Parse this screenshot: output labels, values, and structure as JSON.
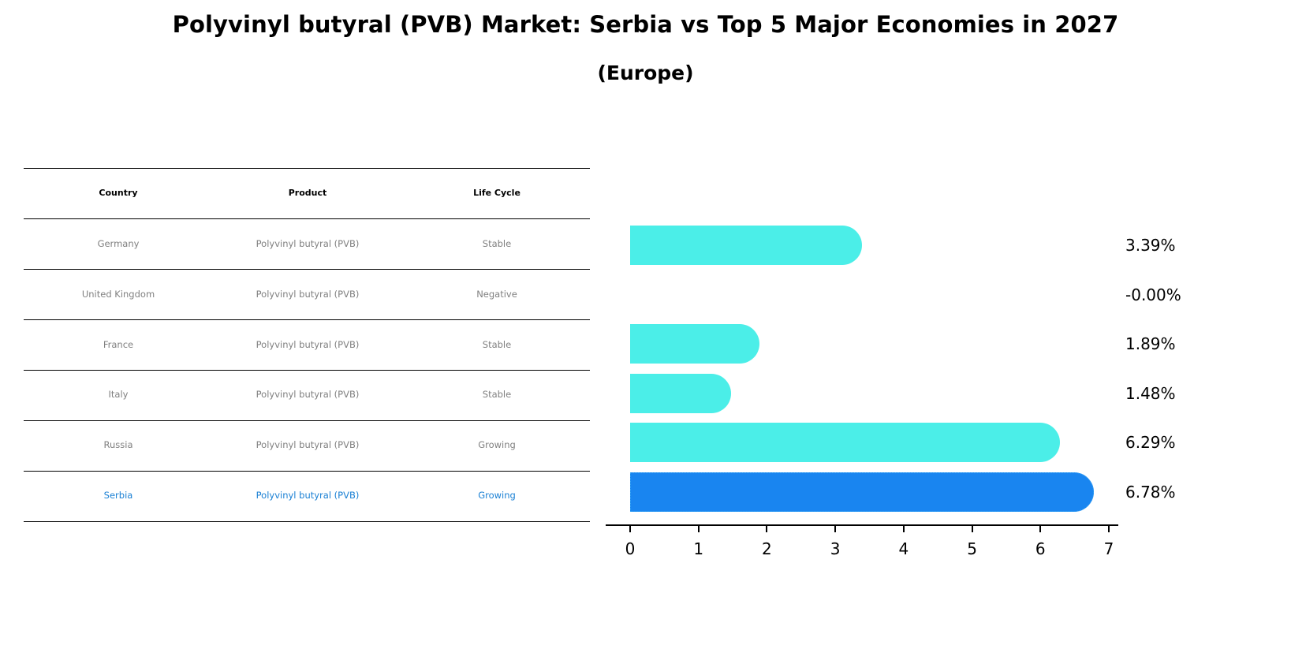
{
  "title": "Polyvinyl butyral (PVB) Market: Serbia vs Top 5 Major Economies in 2027",
  "subtitle": "(Europe)",
  "table": {
    "headers": [
      "Country",
      "Product",
      "Life Cycle"
    ],
    "rows": [
      {
        "country": "Germany",
        "product": "Polyvinyl butyral (PVB)",
        "life_cycle": "Stable",
        "highlight": false
      },
      {
        "country": "United Kingdom",
        "product": "Polyvinyl butyral (PVB)",
        "life_cycle": "Negative",
        "highlight": false
      },
      {
        "country": "France",
        "product": "Polyvinyl butyral (PVB)",
        "life_cycle": "Stable",
        "highlight": false
      },
      {
        "country": "Italy",
        "product": "Polyvinyl butyral (PVB)",
        "life_cycle": "Stable",
        "highlight": false
      },
      {
        "country": "Russia",
        "product": "Polyvinyl butyral (PVB)",
        "life_cycle": "Growing",
        "highlight": false
      },
      {
        "country": "Serbia",
        "product": "Polyvinyl butyral (PVB)",
        "life_cycle": "Growing",
        "highlight": true
      }
    ]
  },
  "colors": {
    "bar_default": "#4beee8",
    "bar_highlight": "#1985f0",
    "text_muted": "#808080",
    "text_highlight": "#1a80d4"
  },
  "chart_data": {
    "type": "bar",
    "orientation": "horizontal",
    "title": "Polyvinyl butyral (PVB) Market: Serbia vs Top 5 Major Economies in 2027",
    "subtitle": "(Europe)",
    "categories": [
      "Germany",
      "United Kingdom",
      "France",
      "Italy",
      "Russia",
      "Serbia"
    ],
    "values": [
      3.39,
      -0.0,
      1.89,
      1.48,
      6.29,
      6.78
    ],
    "value_labels": [
      "3.39%",
      "-0.00%",
      "1.89%",
      "1.48%",
      "6.29%",
      "6.78%"
    ],
    "highlight": "Serbia",
    "xlabel": "",
    "ylabel": "",
    "xlim": [
      0,
      7
    ],
    "xticks": [
      "0",
      "1",
      "2",
      "3",
      "4",
      "5",
      "6",
      "7"
    ],
    "grid": false,
    "legend": null
  }
}
